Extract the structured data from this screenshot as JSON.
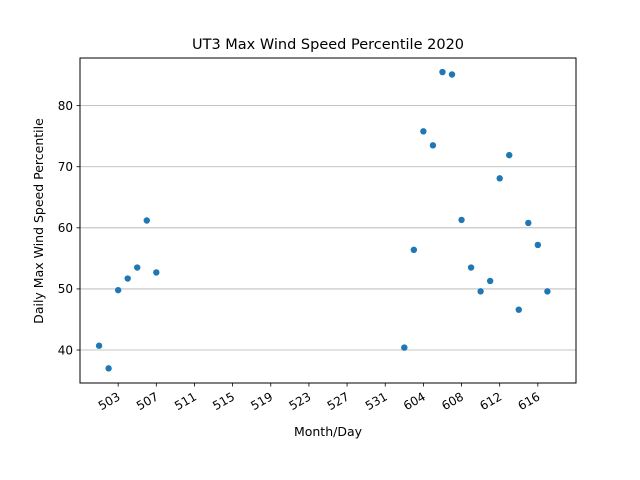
{
  "chart_data": {
    "type": "scatter",
    "title": "UT3 Max Wind Speed Percentile 2020",
    "xlabel": "Month/Day",
    "ylabel": "Daily Max Wind Speed Percentile",
    "x_ticks": [
      "503",
      "507",
      "511",
      "515",
      "519",
      "523",
      "527",
      "531",
      "604",
      "608",
      "612",
      "616"
    ],
    "y_ticks": [
      40,
      50,
      60,
      70,
      80
    ],
    "ylim": [
      34.6,
      87.8
    ],
    "xlim": [
      "04-29",
      "06-20"
    ],
    "grid": "horizontal",
    "marker_color": "#1f77b4",
    "series": [
      {
        "points": [
          {
            "x": "05-01",
            "y": 40.7
          },
          {
            "x": "05-02",
            "y": 37.0
          },
          {
            "x": "05-03",
            "y": 49.8
          },
          {
            "x": "05-04",
            "y": 51.7
          },
          {
            "x": "05-05",
            "y": 53.5
          },
          {
            "x": "05-06",
            "y": 61.2
          },
          {
            "x": "05-07",
            "y": 52.7
          },
          {
            "x": "06-02",
            "y": 40.4
          },
          {
            "x": "06-03",
            "y": 56.4
          },
          {
            "x": "06-04",
            "y": 75.8
          },
          {
            "x": "06-05",
            "y": 73.5
          },
          {
            "x": "06-06",
            "y": 85.5
          },
          {
            "x": "06-07",
            "y": 85.1
          },
          {
            "x": "06-08",
            "y": 61.3
          },
          {
            "x": "06-09",
            "y": 53.5
          },
          {
            "x": "06-10",
            "y": 49.6
          },
          {
            "x": "06-11",
            "y": 51.3
          },
          {
            "x": "06-12",
            "y": 68.1
          },
          {
            "x": "06-13",
            "y": 71.9
          },
          {
            "x": "06-14",
            "y": 46.6
          },
          {
            "x": "06-15",
            "y": 60.8
          },
          {
            "x": "06-16",
            "y": 57.2
          },
          {
            "x": "06-17",
            "y": 49.6
          }
        ]
      }
    ]
  }
}
